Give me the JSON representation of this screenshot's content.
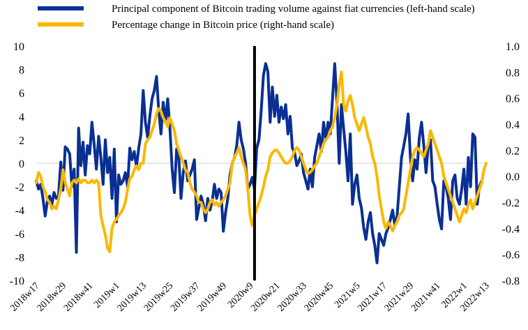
{
  "chart_data": {
    "type": "line",
    "title": "",
    "legend_position": "top",
    "x_ticks": [
      "2018w17",
      "2018w29",
      "2018w41",
      "2019w1",
      "2019w13",
      "2019w25",
      "2019w37",
      "2019w49",
      "2020w9",
      "2020w21",
      "2020w33",
      "2020w45",
      "2021w5",
      "2021w17",
      "2021w29",
      "2021w41",
      "2022w1",
      "2022w13"
    ],
    "y_left": {
      "min": -10,
      "max": 10,
      "step": 2,
      "ticks": [
        "-10",
        "-8",
        "-6",
        "-4",
        "-2",
        "0",
        "2",
        "4",
        "6",
        "8",
        "10"
      ]
    },
    "y_right": {
      "min": -0.8,
      "max": 1.0,
      "ticks": [
        "-0.8",
        "-0.6",
        "-0.4",
        "-0.2",
        "0.0",
        "0.2",
        "0.4",
        "0.6",
        "0.8",
        "1.0"
      ]
    },
    "vertical_marker_week_index": 98,
    "zero_gridline": true,
    "series": [
      {
        "name": "Principal component of Bitcoin trading volume against fiat currencies (left-hand scale)",
        "axis": "left",
        "color": "#0a2f94",
        "values": [
          -1.5,
          -2.2,
          -1.8,
          -3.0,
          -4.5,
          -3.2,
          -2.8,
          -3.5,
          -2.5,
          -3.0,
          -2.8,
          0.1,
          -2.3,
          1.4,
          1.2,
          0.8,
          -2.0,
          -0.5,
          -7.6,
          3.0,
          -0.2,
          1.8,
          -1.0,
          1.5,
          0.8,
          3.5,
          1.6,
          -0.5,
          2.3,
          0.5,
          -1.8,
          2.0,
          -0.8,
          0.5,
          -3.0,
          1.2,
          -5.0,
          -1.0,
          -1.8,
          -1.5,
          -0.8,
          -2.0,
          1.3,
          0.3,
          1.0,
          -0.3,
          1.3,
          2.5,
          6.2,
          3.5,
          2.2,
          4.0,
          5.5,
          6.2,
          7.4,
          4.5,
          2.5,
          5.2,
          3.5,
          5.5,
          3.0,
          -0.5,
          -2.5,
          1.2,
          0.5,
          -3.0,
          -0.8,
          0.2,
          -1.5,
          -1.0,
          -0.5,
          0.3,
          -4.8,
          -3.8,
          -2.8,
          -3.5,
          -4.9,
          -3.0,
          -4.0,
          -3.2,
          -1.8,
          -3.0,
          -2.2,
          -2.5,
          -5.8,
          -4.2,
          -3.0,
          -1.0,
          0.0,
          0.5,
          1.5,
          3.5,
          2.0,
          1.2,
          0.0,
          -2.2,
          -1.8,
          -1.2,
          -2.2,
          1.3,
          2.0,
          4.5,
          7.5,
          8.5,
          7.8,
          3.5,
          6.5,
          4.0,
          5.8,
          3.5,
          4.8,
          3.8,
          5.0,
          2.5,
          4.0,
          1.3,
          0.9,
          -0.2,
          0.2,
          0.8,
          -0.8,
          -1.5,
          -2.2,
          -0.5,
          -2.0,
          0.5,
          1.5,
          2.5,
          1.0,
          3.5,
          2.0,
          3.5,
          2.5,
          5.5,
          8.5,
          5.2,
          0.0,
          5.0,
          3.0,
          1.0,
          -1.5,
          2.5,
          -3.5,
          -1.8,
          -1.0,
          -3.0,
          -3.8,
          -5.5,
          -6.5,
          -5.0,
          -4.2,
          -6.0,
          -7.0,
          -8.5,
          -6.0,
          -6.5,
          -7.0,
          -6.0,
          -5.5,
          -4.8,
          -4.0,
          -5.3,
          -4.5,
          -2.0,
          0.5,
          1.5,
          2.5,
          4.2,
          0.5,
          -1.5,
          0.3,
          -0.5,
          2.2,
          3.5,
          1.5,
          -0.8,
          1.5,
          2.0,
          -1.5,
          -2.0,
          -3.5,
          -4.8,
          -5.6,
          -1.5,
          -2.0,
          -3.0,
          -4.8,
          -1.5,
          -1.0,
          -3.0,
          -3.5,
          -2.2,
          -0.5,
          -3.5,
          0.5,
          -2.0,
          2.5,
          2.2,
          -3.5,
          -2.0,
          -1.5
        ],
        "raw_values_for_reference": []
      },
      {
        "name": "Percentage change in Bitcoin price (right-hand scale)",
        "axis": "right",
        "color": "#f9b800",
        "values": [
          -0.05,
          0.03,
          0.0,
          -0.08,
          -0.12,
          -0.18,
          -0.2,
          -0.25,
          -0.23,
          -0.25,
          -0.18,
          -0.1,
          0.05,
          -0.05,
          -0.1,
          -0.15,
          -0.05,
          -0.03,
          -0.05,
          -0.02,
          -0.05,
          -0.03,
          -0.03,
          -0.05,
          -0.05,
          -0.03,
          -0.05,
          -0.03,
          -0.05,
          -0.3,
          -0.38,
          -0.45,
          -0.55,
          -0.58,
          -0.4,
          -0.35,
          -0.33,
          -0.3,
          -0.28,
          -0.25,
          -0.2,
          -0.1,
          -0.02,
          0.0,
          0.05,
          0.08,
          0.05,
          0.1,
          0.1,
          0.25,
          0.28,
          0.3,
          0.35,
          0.4,
          0.48,
          0.52,
          0.5,
          0.45,
          0.42,
          0.38,
          0.45,
          0.4,
          0.35,
          0.25,
          0.2,
          0.15,
          0.1,
          0.05,
          0.03,
          -0.05,
          -0.1,
          -0.12,
          -0.15,
          -0.2,
          -0.2,
          -0.25,
          -0.28,
          -0.25,
          -0.2,
          -0.18,
          -0.22,
          -0.2,
          -0.23,
          -0.2,
          -0.18,
          -0.15,
          -0.1,
          -0.05,
          0.1,
          0.15,
          0.18,
          0.22,
          0.15,
          0.1,
          0.05,
          -0.1,
          -0.3,
          -0.38,
          -0.3,
          -0.25,
          -0.2,
          -0.15,
          -0.08,
          0.0,
          0.05,
          0.15,
          0.18,
          0.2,
          0.2,
          0.18,
          0.15,
          0.12,
          0.1,
          0.1,
          0.12,
          0.15,
          0.2,
          0.22,
          0.2,
          0.15,
          0.1,
          0.05,
          0.02,
          0.03,
          0.05,
          0.08,
          0.1,
          0.15,
          0.2,
          0.25,
          0.28,
          0.3,
          0.35,
          0.38,
          0.45,
          0.55,
          0.7,
          0.8,
          0.55,
          0.5,
          0.58,
          0.62,
          0.55,
          0.45,
          0.4,
          0.35,
          0.4,
          0.45,
          0.38,
          0.3,
          0.25,
          0.15,
          0.1,
          0.0,
          -0.15,
          -0.25,
          -0.35,
          -0.4,
          -0.35,
          -0.38,
          -0.42,
          -0.38,
          -0.35,
          -0.3,
          -0.28,
          -0.25,
          -0.15,
          -0.05,
          0.05,
          0.15,
          0.2,
          0.22,
          0.2,
          0.18,
          0.15,
          0.2,
          0.25,
          0.35,
          0.3,
          0.25,
          0.2,
          0.15,
          0.1,
          0.0,
          -0.05,
          -0.1,
          -0.15,
          -0.2,
          -0.25,
          -0.3,
          -0.35,
          -0.3,
          -0.25,
          -0.28,
          -0.22,
          -0.18,
          -0.25,
          -0.2,
          -0.15,
          -0.1,
          -0.05,
          0.05,
          0.1
        ]
      }
    ]
  }
}
